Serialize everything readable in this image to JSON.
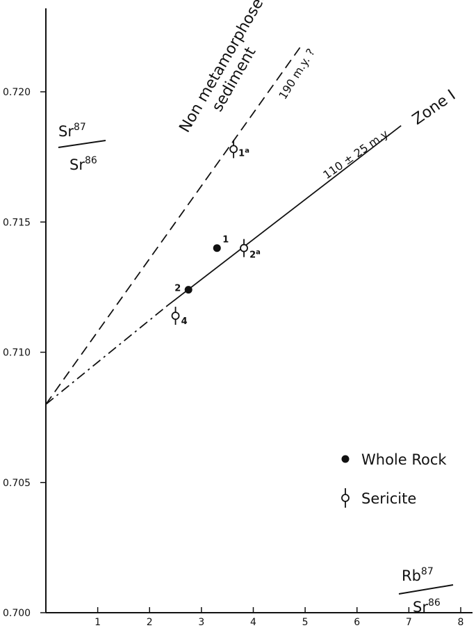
{
  "chart_data": {
    "type": "scatter",
    "title": "",
    "xlabel": {
      "num": "Rb",
      "num_sup": "87",
      "den": "Sr",
      "den_sup": "86"
    },
    "ylabel": {
      "num": "Sr",
      "num_sup": "87",
      "den": "Sr",
      "den_sup": "86"
    },
    "xlim": [
      0,
      8.2
    ],
    "ylim": [
      0.7,
      0.7233
    ],
    "x_ticks": [
      1,
      2,
      3,
      4,
      5,
      6,
      7,
      8
    ],
    "y_ticks": [
      {
        "value": 0.7,
        "label": "0.700"
      },
      {
        "value": 0.705,
        "label": "0.705"
      },
      {
        "value": 0.71,
        "label": "0.710"
      },
      {
        "value": 0.715,
        "label": "0.715"
      },
      {
        "value": 0.72,
        "label": "0.720"
      }
    ],
    "grid": false,
    "series": [
      {
        "name": "Whole Rock",
        "marker": "filled-circle",
        "points": [
          {
            "label": "1",
            "x": 3.3,
            "y": 0.714
          },
          {
            "label": "2",
            "x": 2.75,
            "y": 0.7124
          }
        ]
      },
      {
        "name": "Sericite",
        "marker": "open-circle-with-bar",
        "points": [
          {
            "label": "1a",
            "x": 3.62,
            "y": 0.7178
          },
          {
            "label": "2a",
            "x": 3.82,
            "y": 0.714
          },
          {
            "label": "4",
            "x": 2.5,
            "y": 0.7114
          }
        ]
      }
    ],
    "lines": [
      {
        "name": "Non metamorphosed sediment",
        "style": "dashed",
        "from": [
          0,
          0.708
        ],
        "to": [
          4.9,
          0.7217
        ]
      },
      {
        "name": "Zone I",
        "style": "dash-dot",
        "from": [
          0,
          0.708
        ],
        "to": [
          2.35,
          0.7118
        ]
      },
      {
        "name": "Zone I",
        "style": "solid",
        "from": [
          2.35,
          0.7118
        ],
        "to": [
          6.85,
          0.7187
        ]
      }
    ],
    "annotations": {
      "upper_line_age": "190 m.y. ?",
      "upper_line_title_1": "Non  metamorphosed",
      "upper_line_title_2": "sediment",
      "lower_line_age": "110 ± 25 m.y.",
      "lower_line_title": "Zone  I"
    },
    "legend": {
      "placement": "right",
      "entries": [
        {
          "label": "Whole  Rock",
          "marker": "filled-circle"
        },
        {
          "label": "Sericite",
          "marker": "open-circle-with-bar"
        }
      ]
    }
  }
}
